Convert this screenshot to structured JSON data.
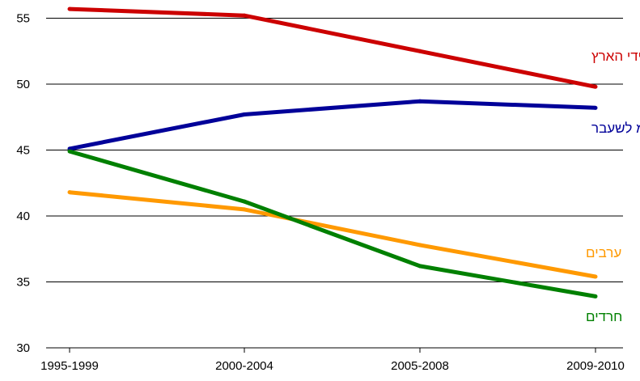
{
  "chart_data": {
    "type": "line",
    "categories": [
      "1995-1999",
      "2000-2004",
      "2005-2008",
      "2009-2010"
    ],
    "ylim": [
      30,
      56
    ],
    "yticks": [
      30,
      35,
      40,
      45,
      50,
      55
    ],
    "ytick_labels": [
      "30",
      "35",
      "40",
      "45",
      "50",
      "55"
    ],
    "grid": true,
    "title": "",
    "xlabel": "",
    "ylabel": "",
    "series": [
      {
        "name": "ילידי הארץ",
        "color": "#cc0000",
        "values": [
          55.7,
          55.2,
          52.5,
          49.8
        ]
      },
      {
        "name": "יוצאי ברה\"מ לשעבר",
        "color": "#000099",
        "values": [
          45.1,
          47.7,
          48.7,
          48.2
        ]
      },
      {
        "name": "ערבים",
        "color": "#ff9900",
        "values": [
          41.8,
          40.5,
          37.8,
          35.4
        ]
      },
      {
        "name": "חרדים",
        "color": "#008000",
        "values": [
          44.9,
          41.1,
          36.2,
          33.9
        ]
      }
    ]
  }
}
